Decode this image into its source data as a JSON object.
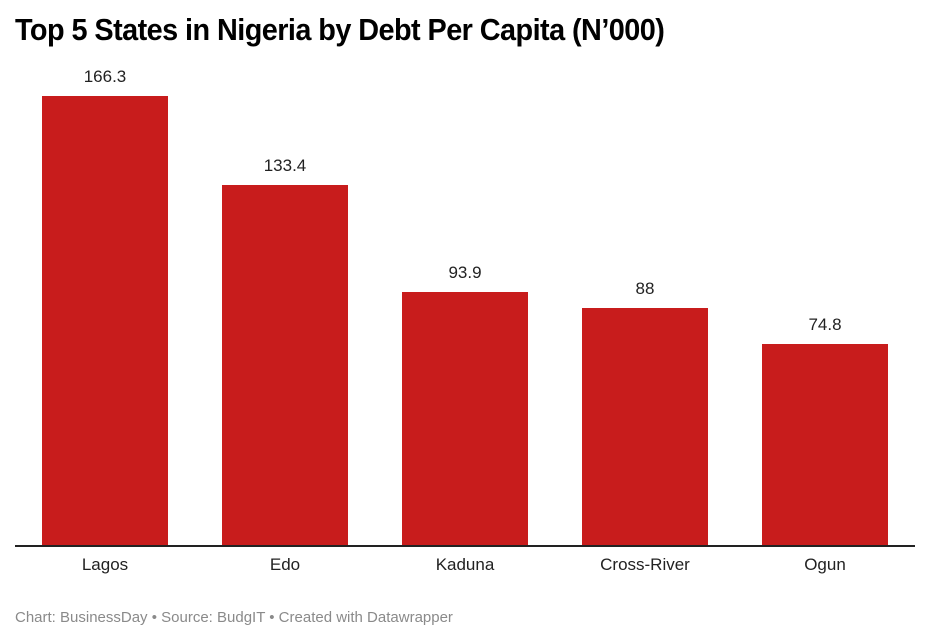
{
  "title": "Top 5 States in Nigeria by Debt Per Capita (N’000)",
  "footer": "Chart: BusinessDay • Source: BudgIT • Created with Datawrapper",
  "colors": {
    "bar": "#C81C1C",
    "baseline": "#222222",
    "text": "#222222",
    "footer": "#8a8a8a"
  },
  "chart_data": {
    "type": "bar",
    "title": "Top 5 States in Nigeria by Debt Per Capita (N’000)",
    "xlabel": "",
    "ylabel": "",
    "categories": [
      "Lagos",
      "Edo",
      "Kaduna",
      "Cross-River",
      "Ogun"
    ],
    "values": [
      166.3,
      133.4,
      93.9,
      88,
      74.8
    ],
    "value_labels": [
      "166.3",
      "133.4",
      "93.9",
      "88",
      "74.8"
    ],
    "ylim": [
      0,
      166.3
    ],
    "grid": false,
    "legend": null,
    "source": "BudgIT",
    "credit": "BusinessDay"
  }
}
